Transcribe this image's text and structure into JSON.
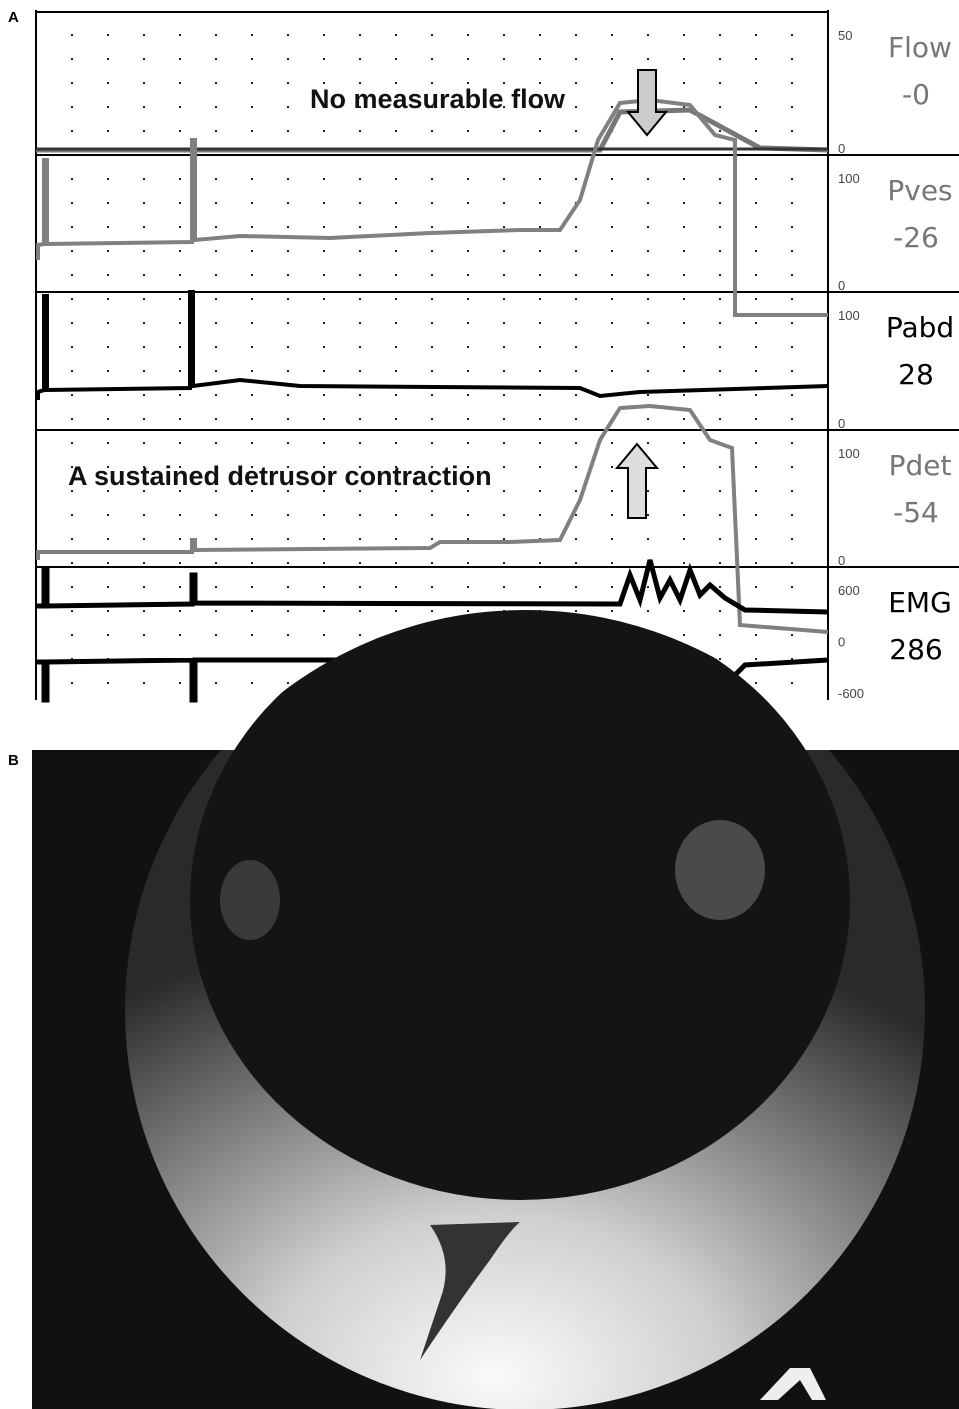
{
  "panels": [
    {
      "label": "A",
      "annotations": [
        "No measurable flow",
        "A sustained detrusor contraction"
      ],
      "channels": [
        {
          "name": "Flow",
          "reading": "-0",
          "scale": [
            "50",
            "0"
          ]
        },
        {
          "name": "Pves",
          "reading": "-26",
          "scale": [
            "100",
            "0"
          ]
        },
        {
          "name": "Pabd",
          "reading": "28",
          "scale": [
            "100",
            "0"
          ]
        },
        {
          "name": "Pdet",
          "reading": "-54",
          "scale": [
            "100",
            "0"
          ]
        },
        {
          "name": "EMG",
          "reading": "286",
          "scale": [
            "600",
            "0",
            "-600"
          ]
        }
      ]
    },
    {
      "label": "B"
    }
  ]
}
